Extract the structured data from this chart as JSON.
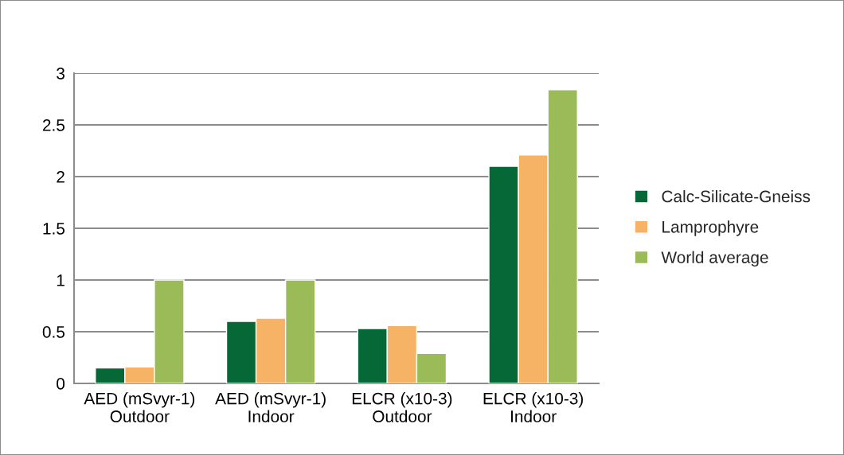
{
  "chart_data": {
    "type": "bar",
    "categories": [
      "AED (mSvyr-1)\nOutdoor",
      "AED (mSvyr-1)\nIndoor",
      "ELCR (x10-3)\nOutdoor",
      "ELCR (x10-3)\nIndoor"
    ],
    "series": [
      {
        "name": "Calc-Silicate-Gneiss",
        "color": "#056836",
        "values": [
          0.15,
          0.6,
          0.53,
          2.1
        ]
      },
      {
        "name": "Lamprophyre",
        "color": "#f6b366",
        "values": [
          0.16,
          0.63,
          0.56,
          2.21
        ]
      },
      {
        "name": "World average",
        "color": "#9bbb59",
        "values": [
          1.0,
          1.0,
          0.29,
          2.84
        ]
      }
    ],
    "ylim": [
      0,
      3
    ],
    "yticks": [
      0,
      0.5,
      1,
      1.5,
      2,
      2.5,
      3
    ],
    "grid": "y",
    "legend": "right"
  }
}
